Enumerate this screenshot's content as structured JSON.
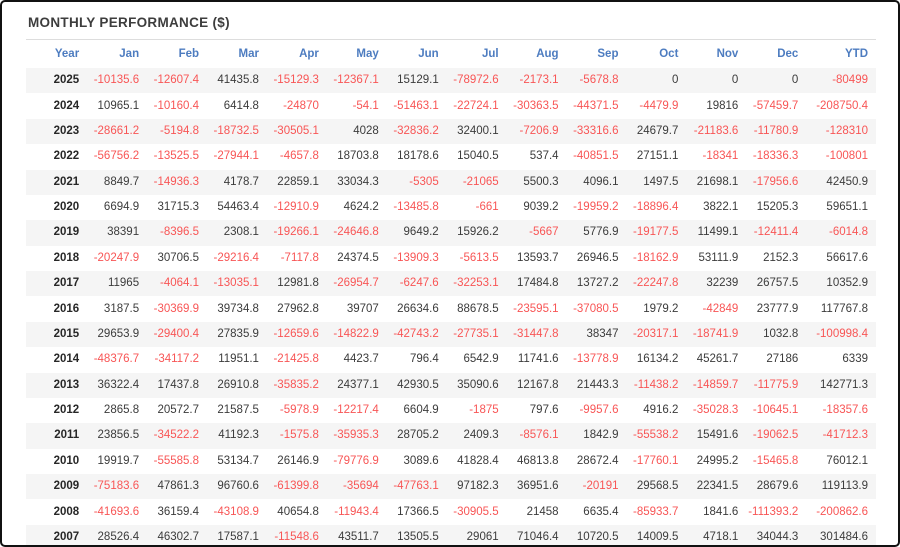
{
  "colors": {
    "header_text": "#4d7cc0",
    "negative_value": "#f85555",
    "positive_value": "#3b3b3b",
    "row_alt_background": "#f5f5f5",
    "frame_border": "#111111",
    "divider": "#dddddd"
  },
  "chart_data": {
    "type": "table",
    "title": "MONTHLY PERFORMANCE ($)",
    "columns": [
      "Year",
      "Jan",
      "Feb",
      "Mar",
      "Apr",
      "May",
      "Jun",
      "Jul",
      "Aug",
      "Sep",
      "Oct",
      "Nov",
      "Dec",
      "YTD"
    ],
    "rows": [
      {
        "year": "2025",
        "values": [
          -10135.6,
          -12607.4,
          41435.8,
          -15129.3,
          -12367.1,
          15129.1,
          -78972.6,
          -2173.1,
          -5678.8,
          0,
          0,
          0,
          -80499
        ]
      },
      {
        "year": "2024",
        "values": [
          10965.1,
          -10160.4,
          6414.8,
          -24870,
          -54.1,
          -51463.1,
          -22724.1,
          -30363.5,
          -44371.5,
          -4479.9,
          19816,
          -57459.7,
          -208750.4
        ]
      },
      {
        "year": "2023",
        "values": [
          -28661.2,
          -5194.8,
          -18732.5,
          -30505.1,
          4028,
          -32836.2,
          32400.1,
          -7206.9,
          -33316.6,
          24679.7,
          -21183.6,
          -11780.9,
          -128310
        ]
      },
      {
        "year": "2022",
        "values": [
          -56756.2,
          -13525.5,
          -27944.1,
          -4657.8,
          18703.8,
          18178.6,
          15040.5,
          537.4,
          -40851.5,
          27151.1,
          -18341,
          -18336.3,
          -100801
        ]
      },
      {
        "year": "2021",
        "values": [
          8849.7,
          -14936.3,
          4178.7,
          22859.1,
          33034.3,
          -5305,
          -21065,
          5500.3,
          4096.1,
          1497.5,
          21698.1,
          -17956.6,
          42450.9
        ]
      },
      {
        "year": "2020",
        "values": [
          6694.9,
          31715.3,
          54463.4,
          -12910.9,
          4624.2,
          -13485.8,
          -661,
          9039.2,
          -19959.2,
          -18896.4,
          3822.1,
          15205.3,
          59651.1
        ]
      },
      {
        "year": "2019",
        "values": [
          38391,
          -8396.5,
          2308.1,
          -19266.1,
          -24646.8,
          9649.2,
          15926.2,
          -5667,
          5776.9,
          -19177.5,
          11499.1,
          -12411.4,
          -6014.8
        ]
      },
      {
        "year": "2018",
        "values": [
          -20247.9,
          30706.5,
          -29216.4,
          -7117.8,
          24374.5,
          -13909.3,
          -5613.5,
          13593.7,
          26946.5,
          -18162.9,
          53111.9,
          2152.3,
          56617.6
        ]
      },
      {
        "year": "2017",
        "values": [
          11965,
          -4064.1,
          -13035.1,
          12981.8,
          -26954.7,
          -6247.6,
          -32253.1,
          17484.8,
          13727.2,
          -22247.8,
          32239,
          26757.5,
          10352.9
        ]
      },
      {
        "year": "2016",
        "values": [
          3187.5,
          -30369.9,
          39734.8,
          27962.8,
          39707,
          26634.6,
          88678.5,
          -23595.1,
          -37080.5,
          1979.2,
          -42849,
          23777.9,
          117767.8
        ]
      },
      {
        "year": "2015",
        "values": [
          29653.9,
          -29400.4,
          27835.9,
          -12659.6,
          -14822.9,
          -42743.2,
          -27735.1,
          -31447.8,
          38347,
          -20317.1,
          -18741.9,
          1032.8,
          -100998.4
        ]
      },
      {
        "year": "2014",
        "values": [
          -48376.7,
          -34117.2,
          11951.1,
          -21425.8,
          4423.7,
          796.4,
          6542.9,
          11741.6,
          -13778.9,
          16134.2,
          45261.7,
          27186,
          6339
        ]
      },
      {
        "year": "2013",
        "values": [
          36322.4,
          17437.8,
          26910.8,
          -35835.2,
          24377.1,
          42930.5,
          35090.6,
          12167.8,
          21443.3,
          -11438.2,
          -14859.7,
          -11775.9,
          142771.3
        ]
      },
      {
        "year": "2012",
        "values": [
          2865.8,
          20572.7,
          21587.5,
          -5978.9,
          -12217.4,
          6604.9,
          -1875,
          797.6,
          -9957.6,
          4916.2,
          -35028.3,
          -10645.1,
          -18357.6
        ]
      },
      {
        "year": "2011",
        "values": [
          23856.5,
          -34522.2,
          41192.3,
          -1575.8,
          -35935.3,
          28705.2,
          2409.3,
          -8576.1,
          1842.9,
          -55538.2,
          15491.6,
          -19062.5,
          -41712.3
        ]
      },
      {
        "year": "2010",
        "values": [
          19919.7,
          -55585.8,
          53134.7,
          26146.9,
          -79776.9,
          3089.6,
          41828.4,
          46813.8,
          28672.4,
          -17760.1,
          24995.2,
          -15465.8,
          76012.1
        ]
      },
      {
        "year": "2009",
        "values": [
          -75183.6,
          47861.3,
          96760.6,
          -61399.8,
          -35694,
          -47763.1,
          97182.3,
          36951.6,
          -20191,
          29568.5,
          22341.5,
          28679.6,
          119113.9
        ]
      },
      {
        "year": "2008",
        "values": [
          -41693.6,
          36159.4,
          -43108.9,
          40654.8,
          -11943.4,
          17366.5,
          -30905.5,
          21458,
          6635.4,
          -85933.7,
          1841.6,
          -111393.2,
          -200862.6
        ]
      },
      {
        "year": "2007",
        "values": [
          28526.4,
          46302.7,
          17587.1,
          -11548.6,
          43511.7,
          13505.5,
          29061,
          71046.4,
          10720.5,
          14009.5,
          4718.1,
          34044.3,
          301484.6
        ]
      }
    ]
  }
}
